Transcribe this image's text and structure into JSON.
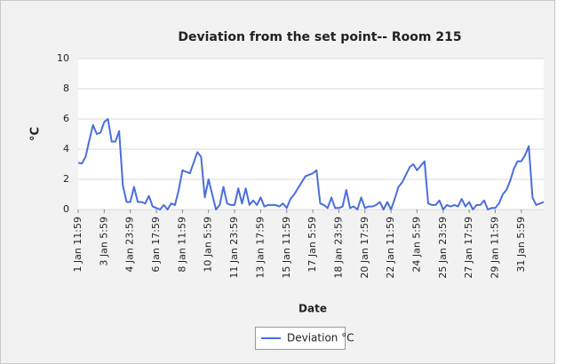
{
  "chart_data": {
    "type": "line",
    "title": "Deviation from the set point-- Room 215",
    "x_label": "Date",
    "y_label": "°C",
    "categories": [
      "1 Jan 11:59",
      null,
      null,
      null,
      null,
      null,
      null,
      "3 Jan 5:59",
      null,
      null,
      null,
      null,
      null,
      null,
      "4 Jan 23:59",
      null,
      null,
      null,
      null,
      null,
      null,
      "6 Jan 17:59",
      null,
      null,
      null,
      null,
      null,
      null,
      "8 Jan 11:59",
      null,
      null,
      null,
      null,
      null,
      null,
      "10 Jan 5:59",
      null,
      null,
      null,
      null,
      null,
      null,
      "11 Jan 23:59",
      null,
      null,
      null,
      null,
      null,
      null,
      "13 Jan 17:59",
      null,
      null,
      null,
      null,
      null,
      null,
      "15 Jan 11:59",
      null,
      null,
      null,
      null,
      null,
      null,
      "17 Jan 5:59",
      null,
      null,
      null,
      null,
      null,
      null,
      "18 Jan 23:59",
      null,
      null,
      null,
      null,
      null,
      null,
      "20 Jan 17:59",
      null,
      null,
      null,
      null,
      null,
      null,
      "22 Jan 11:59",
      null,
      null,
      null,
      null,
      null,
      null,
      "24 Jan 5:59",
      null,
      null,
      null,
      null,
      null,
      null,
      "25 Jan 23:59",
      null,
      null,
      null,
      null,
      null,
      null,
      "27 Jan 17:59",
      null,
      null,
      null,
      null,
      null,
      null,
      "29 Jan 11:59",
      null,
      null,
      null,
      null,
      null,
      null,
      "31 Jan 5:59",
      null,
      null,
      null,
      null,
      null,
      null
    ],
    "series": [
      {
        "name": "Deviation °C",
        "color": "#4a6ee0",
        "values": [
          3.1,
          3.05,
          3.5,
          4.6,
          5.6,
          5.0,
          5.1,
          5.8,
          6.0,
          4.5,
          4.5,
          5.2,
          1.6,
          0.5,
          0.5,
          1.5,
          0.5,
          0.5,
          0.4,
          0.9,
          0.2,
          0.1,
          0.0,
          0.3,
          0.0,
          0.4,
          0.3,
          1.3,
          2.6,
          2.5,
          2.4,
          3.1,
          3.8,
          3.5,
          0.8,
          2.0,
          1.0,
          0.0,
          0.3,
          1.5,
          0.4,
          0.3,
          0.3,
          1.4,
          0.4,
          1.4,
          0.3,
          0.6,
          0.3,
          0.8,
          0.2,
          0.3,
          0.3,
          0.3,
          0.2,
          0.4,
          0.1,
          0.7,
          1.0,
          1.4,
          1.8,
          2.2,
          2.3,
          2.4,
          2.6,
          0.4,
          0.3,
          0.1,
          0.8,
          0.1,
          0.1,
          0.2,
          1.3,
          0.1,
          0.2,
          0.0,
          0.8,
          0.1,
          0.2,
          0.2,
          0.3,
          0.5,
          0.0,
          0.5,
          0.0,
          0.7,
          1.5,
          1.8,
          2.3,
          2.8,
          3.0,
          2.6,
          2.9,
          3.2,
          0.4,
          0.3,
          0.3,
          0.6,
          0.0,
          0.3,
          0.2,
          0.3,
          0.2,
          0.7,
          0.2,
          0.5,
          0.0,
          0.3,
          0.3,
          0.6,
          0.0,
          0.1,
          0.1,
          0.4,
          1.0,
          1.3,
          1.9,
          2.7,
          3.2,
          3.2,
          3.6,
          4.2,
          0.8,
          0.3,
          0.4,
          0.5
        ]
      }
    ],
    "ylim": [
      0,
      10
    ],
    "yticks": [
      0,
      2,
      4,
      6,
      8,
      10
    ],
    "grid": true,
    "legend": "bottom"
  }
}
